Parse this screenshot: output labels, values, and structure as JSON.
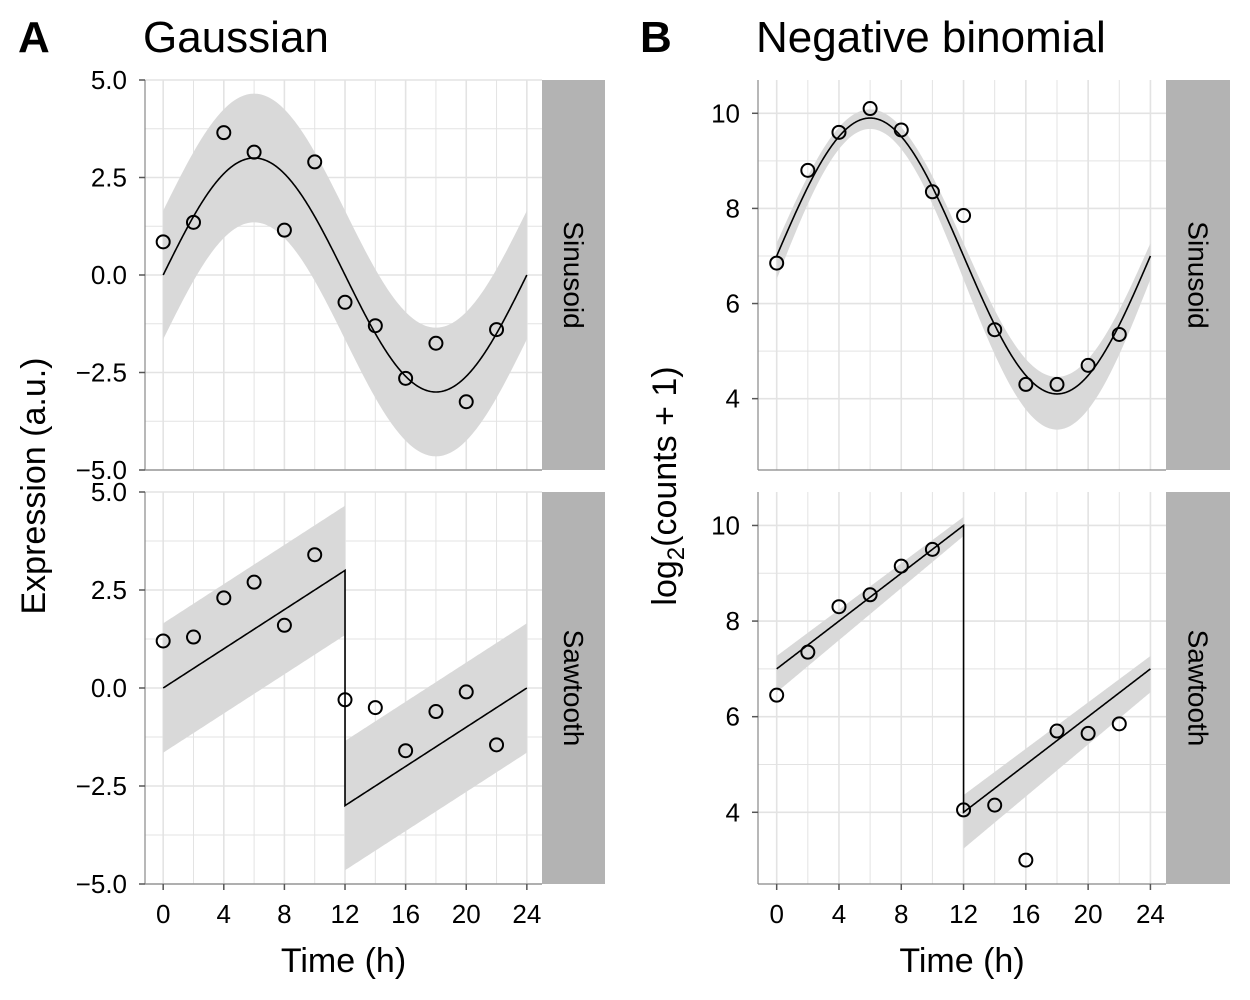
{
  "chart_data": [
    {
      "panel_letter": "A",
      "title": "Gaussian",
      "type": "scatter",
      "xlabel": "Time (h)",
      "ylabel": "Expression (a.u.)",
      "xlim": [
        -1.2,
        25
      ],
      "ylim": [
        -5,
        5
      ],
      "xticks": [
        0,
        4,
        8,
        12,
        16,
        20,
        24
      ],
      "yticks": [
        5,
        2.5,
        0,
        -2.5,
        -5
      ],
      "ytick_labels": [
        "5.0",
        "2.5",
        "0.0",
        "−2.5",
        "−5.0"
      ],
      "grid": true,
      "facets": [
        {
          "strip": "Sinusoid",
          "fit": "sinusoid",
          "points": {
            "x": [
              0,
              2,
              4,
              6,
              8,
              10,
              12,
              14,
              16,
              18,
              20,
              22
            ],
            "y": [
              0.85,
              1.35,
              3.65,
              3.15,
              1.15,
              2.9,
              -0.7,
              -1.3,
              -2.65,
              -1.75,
              -3.25,
              -1.4
            ]
          }
        },
        {
          "strip": "Sawtooth",
          "fit": "sawtooth",
          "points": {
            "x": [
              0,
              2,
              4,
              6,
              8,
              10,
              12,
              14,
              16,
              18,
              20,
              22
            ],
            "y": [
              1.2,
              1.3,
              2.3,
              2.7,
              1.6,
              3.4,
              -0.3,
              -0.5,
              -1.6,
              -0.6,
              -0.1,
              -1.45
            ]
          }
        }
      ]
    },
    {
      "panel_letter": "B",
      "title": "Negative binomial",
      "type": "scatter",
      "xlabel": "Time (h)",
      "ylabel": "log2(counts + 1)",
      "ylabel_parts": {
        "pre": "log",
        "sub": "2",
        "post": "(counts + 1)"
      },
      "xlim": [
        -1.2,
        25
      ],
      "ylim": [
        2.5,
        10.7
      ],
      "xticks": [
        0,
        4,
        8,
        12,
        16,
        20,
        24
      ],
      "yticks": [
        10,
        8,
        6,
        4
      ],
      "ytick_labels": [
        "10",
        "8",
        "6",
        "4"
      ],
      "grid": true,
      "facets": [
        {
          "strip": "Sinusoid",
          "fit": "sinusoid",
          "points": {
            "x": [
              0,
              2,
              4,
              6,
              8,
              10,
              12,
              14,
              16,
              18,
              20,
              22
            ],
            "y": [
              6.85,
              8.8,
              9.6,
              10.1,
              9.65,
              8.35,
              7.85,
              5.45,
              4.3,
              4.3,
              4.7,
              5.35
            ]
          }
        },
        {
          "strip": "Sawtooth",
          "fit": "sawtooth",
          "points": {
            "x": [
              0,
              2,
              4,
              6,
              8,
              10,
              12,
              14,
              16,
              18,
              20,
              22
            ],
            "y": [
              6.45,
              7.35,
              8.3,
              8.55,
              9.15,
              9.5,
              4.05,
              4.15,
              3.0,
              5.7,
              5.65,
              5.85
            ]
          }
        }
      ]
    }
  ],
  "colors": {
    "ribbon": "#d9d9d9",
    "grid": "#e3e3e3",
    "strip": "#b3b3b3",
    "line": "#000000",
    "points": "#000000"
  }
}
